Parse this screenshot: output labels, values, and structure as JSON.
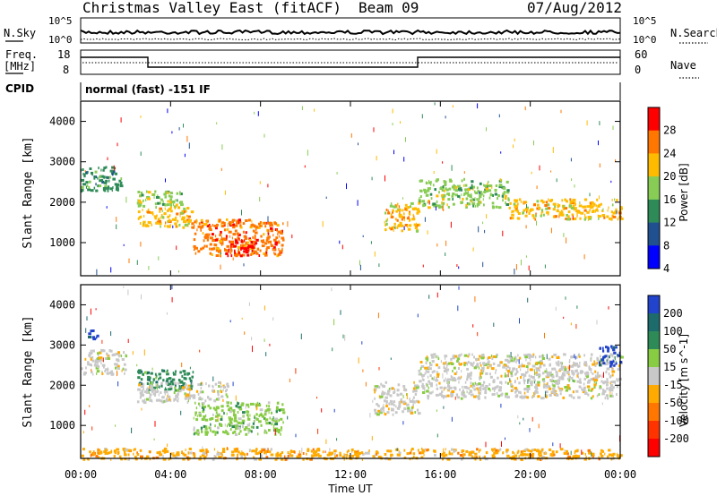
{
  "header": {
    "station": "Christmas Valley East (fitACF)",
    "beam": "Beam 09",
    "date": "07/Aug/2012"
  },
  "top_panels": {
    "nsky_label": "N.Sky",
    "nsearch_label": "N.Search",
    "noise_ticks": [
      "10^5",
      "10^0"
    ],
    "freq_label_1": "Freq.",
    "freq_label_2": "[MHz]",
    "freq_ticks": [
      "18",
      "8"
    ],
    "nave_label": "Nave",
    "nave_ticks": [
      "60",
      "0"
    ],
    "cpid_label": "CPID",
    "cpid_value": "normal (fast) -151 IF"
  },
  "chart_data": [
    {
      "type": "heatmap",
      "title": "",
      "xlabel": "Time UT",
      "ylabel": "Slant Range [km]",
      "x_ticks": [
        "00:00",
        "04:00",
        "08:00",
        "12:00",
        "16:00",
        "20:00",
        "00:00"
      ],
      "xlim_hours": [
        0,
        24
      ],
      "y_ticks": [
        1000,
        2000,
        3000,
        4000
      ],
      "ylim": [
        180,
        4500
      ],
      "colorbar": {
        "label": "Power [dB]",
        "ticks": [
          "28",
          "24",
          "20",
          "16",
          "12",
          "8",
          "4"
        ],
        "colors": [
          "#ff0000",
          "#ff7700",
          "#ffbb00",
          "#88cc55",
          "#2e8b57",
          "#205090",
          "#0000ff"
        ]
      },
      "regions": [
        {
          "t0": 0.0,
          "t1": 1.8,
          "r0": 2300,
          "r1": 2900,
          "level": 4
        },
        {
          "t0": 2.5,
          "t1": 4.5,
          "r0": 1900,
          "r1": 2300,
          "level": 3
        },
        {
          "t0": 2.5,
          "t1": 5.0,
          "r0": 1400,
          "r1": 1900,
          "level": 2
        },
        {
          "t0": 5.0,
          "t1": 9.0,
          "r0": 700,
          "r1": 1600,
          "level": 1
        },
        {
          "t0": 6.5,
          "t1": 7.8,
          "r0": 700,
          "r1": 1100,
          "level": 0
        },
        {
          "t0": 13.5,
          "t1": 15.0,
          "r0": 1300,
          "r1": 2000,
          "level": 2
        },
        {
          "t0": 15.0,
          "t1": 19.0,
          "r0": 1900,
          "r1": 2600,
          "level": 3
        },
        {
          "t0": 19.0,
          "t1": 24.0,
          "r0": 1600,
          "r1": 2100,
          "level": 2
        }
      ]
    },
    {
      "type": "heatmap",
      "title": "",
      "xlabel": "Time UT",
      "ylabel": "Slant Range [km]",
      "x_ticks": [
        "00:00",
        "04:00",
        "08:00",
        "12:00",
        "16:00",
        "20:00",
        "00:00"
      ],
      "xlim_hours": [
        0,
        24
      ],
      "y_ticks": [
        1000,
        2000,
        3000,
        4000
      ],
      "ylim": [
        180,
        4500
      ],
      "colorbar": {
        "label": "Velocity [m s^-1]",
        "ticks": [
          "200",
          "100",
          "50",
          "15",
          "-15",
          "-50",
          "-100",
          "-200"
        ],
        "colors": [
          "#2244cc",
          "#1e6b6b",
          "#2e8b57",
          "#88cc44",
          "#c8c8c8",
          "#ffaa00",
          "#ff7700",
          "#ff3300",
          "#ff0000"
        ]
      },
      "regions": [
        {
          "t0": 0.0,
          "t1": 2.0,
          "r0": 2300,
          "r1": 2900,
          "level": 4
        },
        {
          "t0": 0.3,
          "t1": 0.7,
          "r0": 3150,
          "r1": 3400,
          "level": 0
        },
        {
          "t0": 2.5,
          "t1": 5.0,
          "r0": 1900,
          "r1": 2400,
          "level": 2
        },
        {
          "t0": 2.5,
          "t1": 6.5,
          "r0": 1600,
          "r1": 2100,
          "level": 4
        },
        {
          "t0": 5.0,
          "t1": 9.0,
          "r0": 800,
          "r1": 1600,
          "level": 3
        },
        {
          "t0": 13.0,
          "t1": 15.0,
          "r0": 1300,
          "r1": 2100,
          "level": 4
        },
        {
          "t0": 15.0,
          "t1": 24.0,
          "r0": 1700,
          "r1": 2800,
          "level": 4
        },
        {
          "t0": 23.0,
          "t1": 24.0,
          "r0": 2500,
          "r1": 3000,
          "level": 0
        },
        {
          "t0": 0.0,
          "t1": 24.0,
          "r0": 180,
          "r1": 450,
          "level": 5
        }
      ]
    }
  ]
}
